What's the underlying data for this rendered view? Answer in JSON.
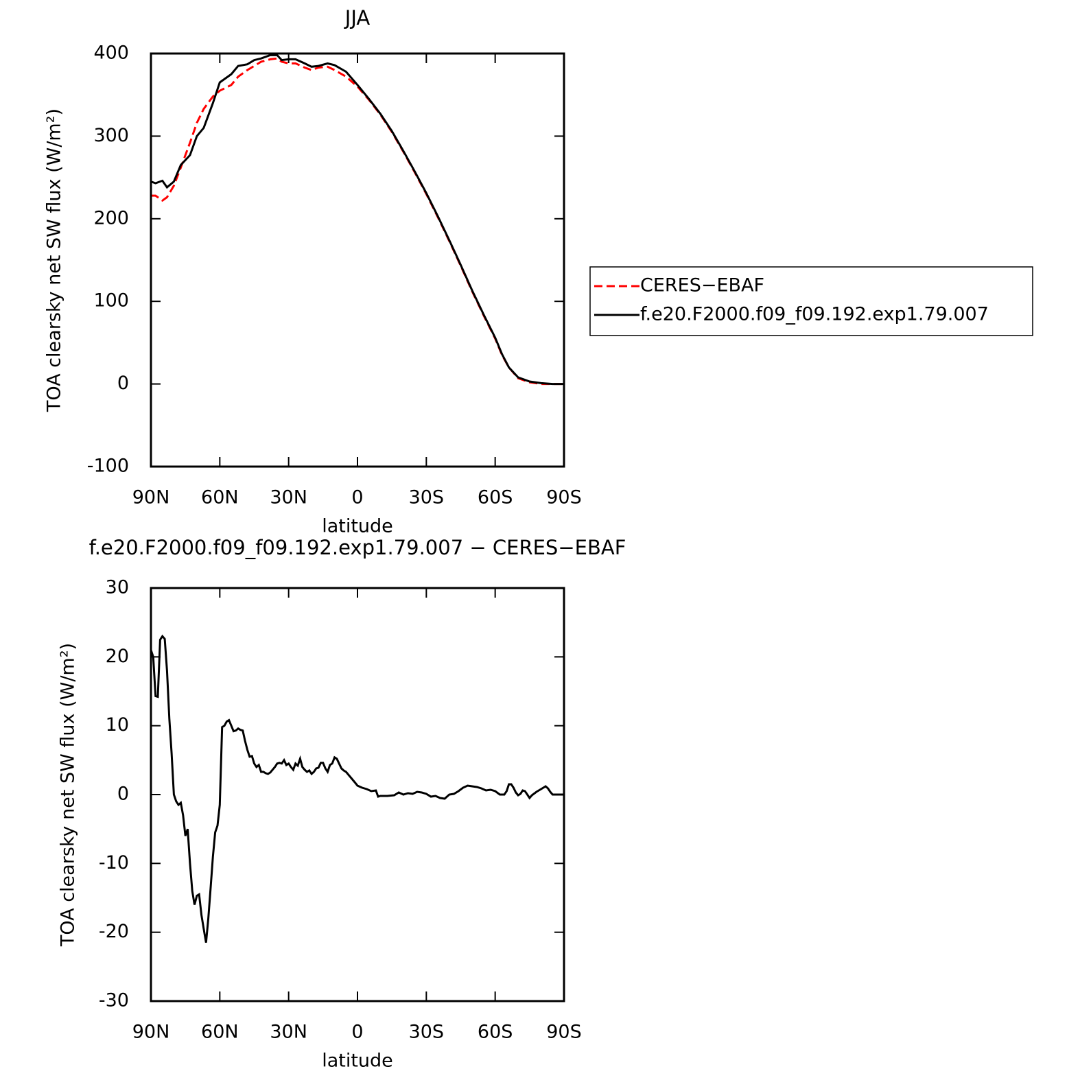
{
  "chart_data": [
    {
      "type": "line",
      "title": "JJA",
      "xlabel": "latitude",
      "ylabel": "TOA clearsky net SW flux (W/m²)",
      "x": [
        90,
        88,
        85,
        83,
        80,
        77,
        73,
        70,
        67,
        63,
        60,
        55,
        52,
        48,
        45,
        42,
        38,
        35,
        33,
        30,
        27,
        23,
        20,
        17,
        13,
        10,
        5,
        0,
        -5,
        -10,
        -15,
        -20,
        -25,
        -30,
        -35,
        -40,
        -45,
        -50,
        -55,
        -60,
        -63,
        -66,
        -70,
        -75,
        -80,
        -85,
        -90
      ],
      "series": [
        {
          "name": "CERES−EBAF",
          "color": "#ff0000",
          "style": "dashed",
          "values": [
            228,
            228,
            222,
            226,
            240,
            262,
            292,
            316,
            333,
            348,
            355,
            362,
            372,
            380,
            385,
            390,
            393,
            394,
            390,
            388,
            388,
            383,
            380,
            383,
            384,
            380,
            372,
            360,
            344,
            326,
            305,
            281,
            256,
            230,
            202,
            173,
            143,
            112,
            83,
            55,
            35,
            20,
            7,
            2,
            0,
            0,
            0
          ]
        },
        {
          "name": "f.e20.F2000.f09_f09.192.exp1.79.007",
          "color": "#000000",
          "style": "solid",
          "values": [
            245,
            243,
            246,
            238,
            245,
            265,
            277,
            300,
            310,
            340,
            365,
            375,
            385,
            387,
            392,
            394,
            398,
            398,
            392,
            393,
            393,
            388,
            384,
            385,
            388,
            386,
            378,
            362,
            345,
            327,
            306,
            282,
            257,
            231,
            203,
            174,
            144,
            113,
            84,
            56,
            36,
            20,
            8,
            3,
            1,
            0,
            0
          ]
        }
      ],
      "xlim": [
        90,
        -90
      ],
      "xticks": [
        {
          "value": 90,
          "label": "90N"
        },
        {
          "value": 60,
          "label": "60N"
        },
        {
          "value": 30,
          "label": "30N"
        },
        0,
        {
          "value": -30,
          "label": "30S"
        },
        {
          "value": -60,
          "label": "60S"
        },
        {
          "value": -90,
          "label": "90S"
        }
      ],
      "ylim": [
        -100,
        400
      ],
      "yticks": [
        -100,
        0,
        100,
        200,
        300,
        400
      ],
      "legend": "right"
    },
    {
      "type": "line",
      "title": "f.e20.F2000.f09_f09.192.exp1.79.007 − CERES−EBAF",
      "xlabel": "latitude",
      "ylabel": "TOA clearsky net SW flux (W/m²)",
      "x": [
        90,
        89,
        88,
        87,
        86,
        85,
        84,
        83,
        82,
        81,
        80,
        79,
        78,
        77,
        76,
        75,
        74,
        73,
        72,
        71,
        70,
        69,
        68,
        67,
        66,
        65,
        64,
        63,
        62,
        61,
        60,
        59,
        58,
        57,
        56,
        55,
        54,
        53,
        52,
        51,
        50,
        49,
        48,
        47,
        46,
        45,
        44,
        43,
        42,
        41,
        40,
        39,
        38,
        36,
        35,
        34,
        33,
        32,
        31,
        30,
        29,
        28,
        27,
        26,
        25,
        24,
        23,
        22,
        21,
        20,
        19,
        18,
        17,
        16,
        15,
        14,
        13,
        12,
        11,
        10,
        9,
        8,
        7,
        6,
        5,
        3,
        1,
        0,
        -2,
        -4,
        -6,
        -8,
        -9,
        -10,
        -13,
        -16,
        -18,
        -20,
        -22,
        -24,
        -26,
        -28,
        -30,
        -32,
        -34,
        -36,
        -38,
        -40,
        -42,
        -44,
        -46,
        -48,
        -50,
        -52,
        -54,
        -56,
        -58,
        -60,
        -62,
        -64,
        -65,
        -66,
        -67,
        -68,
        -69,
        -70,
        -71,
        -72,
        -73,
        -74,
        -75,
        -76,
        -78,
        -80,
        -82,
        -83,
        -84,
        -85,
        -87,
        -90
      ],
      "values": [
        21,
        20,
        14.3,
        14.2,
        22.5,
        23,
        22.6,
        18,
        11,
        6,
        0,
        -1,
        -1.5,
        -1.2,
        -3,
        -6,
        -5,
        -10,
        -14,
        -16,
        -14.7,
        -14.5,
        -17.5,
        -19.5,
        -21.5,
        -18,
        -13.5,
        -9,
        -5.5,
        -4.5,
        -1.5,
        9.8,
        10,
        10.6,
        10.8,
        10,
        9.2,
        9.3,
        9.6,
        9.4,
        9.3,
        7.8,
        6.5,
        5.5,
        5.6,
        4.5,
        4,
        4.3,
        3.3,
        3.3,
        3.1,
        3,
        3.2,
        4,
        4.5,
        4.6,
        4.5,
        5,
        4.3,
        4.5,
        4,
        3.6,
        4.5,
        4.2,
        5.2,
        4,
        3.6,
        3.3,
        3.5,
        3,
        3.3,
        3.8,
        3.9,
        4.6,
        4.6,
        3.8,
        3.3,
        4.3,
        4.5,
        5.4,
        5.2,
        4.5,
        3.8,
        3.5,
        3.3,
        2.5,
        1.7,
        1.3,
        1,
        0.8,
        0.5,
        0.6,
        -0.3,
        -0.2,
        -0.2,
        -0.1,
        0.3,
        0,
        0.2,
        0.1,
        0.4,
        0.3,
        0.1,
        -0.3,
        -0.2,
        -0.5,
        -0.6,
        0,
        0.1,
        0.5,
        1,
        1.3,
        1.2,
        1.1,
        0.9,
        0.6,
        0.7,
        0.5,
        0,
        0,
        0.5,
        1.5,
        1.5,
        1,
        0.3,
        -0.1,
        0.1,
        0.6,
        0.5,
        0,
        -0.5,
        -0.1,
        0.4,
        0.8,
        1.2,
        0.9,
        0.4,
        0,
        0,
        0
      ],
      "color": "#000000",
      "xlim": [
        90,
        -90
      ],
      "xticks": [
        {
          "value": 90,
          "label": "90N"
        },
        {
          "value": 60,
          "label": "60N"
        },
        {
          "value": 30,
          "label": "30N"
        },
        0,
        {
          "value": -30,
          "label": "30S"
        },
        {
          "value": -60,
          "label": "60S"
        },
        {
          "value": -90,
          "label": "90S"
        }
      ],
      "ylim": [
        -30,
        30
      ],
      "yticks": [
        -30,
        -20,
        -10,
        0,
        10,
        20,
        30
      ]
    }
  ]
}
